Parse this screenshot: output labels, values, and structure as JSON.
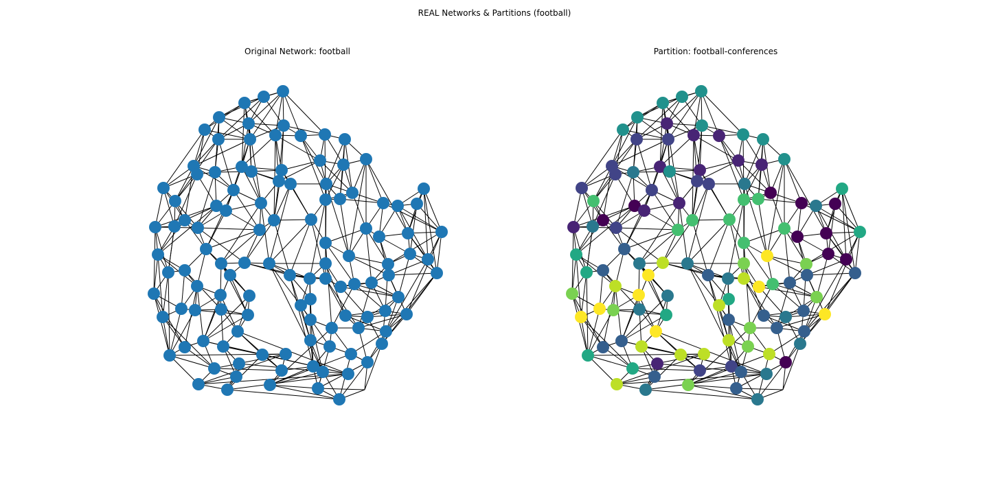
{
  "figure": {
    "suptitle": "REAL Networks & Partitions (football)",
    "left_title": "Original Network: football",
    "right_title": "Partition: football-conferences"
  },
  "colors": {
    "default_node": "#1f77b4",
    "edge": "#000000",
    "palette": [
      "#440154",
      "#482475",
      "#414487",
      "#355f8d",
      "#2a788e",
      "#21918c",
      "#22a884",
      "#44bf70",
      "#7ad151",
      "#bddf26",
      "#fde725"
    ]
  },
  "chart_data": {
    "type": "network",
    "nodes": [
      {
        "id": 0,
        "community": 5
      },
      {
        "id": 1,
        "community": 5
      },
      {
        "id": 2,
        "community": 5
      },
      {
        "id": 3,
        "community": 5
      },
      {
        "id": 4,
        "community": 5
      },
      {
        "id": 5,
        "community": 1
      },
      {
        "id": 6,
        "community": 5
      },
      {
        "id": 7,
        "community": 1
      },
      {
        "id": 8,
        "community": 1
      },
      {
        "id": 9,
        "community": 5
      },
      {
        "id": 10,
        "community": 5
      },
      {
        "id": 11,
        "community": 2
      },
      {
        "id": 12,
        "community": 2
      },
      {
        "id": 13,
        "community": 5
      },
      {
        "id": 14,
        "community": 1
      },
      {
        "id": 15,
        "community": 1
      },
      {
        "id": 16,
        "community": 2
      },
      {
        "id": 17,
        "community": 2
      },
      {
        "id": 18,
        "community": 4
      },
      {
        "id": 19,
        "community": 1
      },
      {
        "id": 20,
        "community": 5
      },
      {
        "id": 21,
        "community": 1
      },
      {
        "id": 22,
        "community": 2
      },
      {
        "id": 23,
        "community": 2
      },
      {
        "id": 24,
        "community": 4
      },
      {
        "id": 25,
        "community": 2
      },
      {
        "id": 26,
        "community": 2
      },
      {
        "id": 27,
        "community": 7
      },
      {
        "id": 28,
        "community": 0
      },
      {
        "id": 29,
        "community": 1
      },
      {
        "id": 30,
        "community": 1
      },
      {
        "id": 31,
        "community": 7
      },
      {
        "id": 32,
        "community": 7
      },
      {
        "id": 33,
        "community": 0
      },
      {
        "id": 34,
        "community": 6
      },
      {
        "id": 35,
        "community": 0
      },
      {
        "id": 36,
        "community": 4
      },
      {
        "id": 37,
        "community": 0
      },
      {
        "id": 38,
        "community": 0
      },
      {
        "id": 39,
        "community": 4
      },
      {
        "id": 40,
        "community": 1
      },
      {
        "id": 41,
        "community": 2
      },
      {
        "id": 42,
        "community": 7
      },
      {
        "id": 43,
        "community": 7
      },
      {
        "id": 44,
        "community": 7
      },
      {
        "id": 45,
        "community": 7
      },
      {
        "id": 46,
        "community": 0
      },
      {
        "id": 47,
        "community": 6
      },
      {
        "id": 48,
        "community": 0
      },
      {
        "id": 49,
        "community": 3
      },
      {
        "id": 50,
        "community": 6
      },
      {
        "id": 51,
        "community": 7
      },
      {
        "id": 52,
        "community": 9
      },
      {
        "id": 53,
        "community": 4
      },
      {
        "id": 54,
        "community": 10
      },
      {
        "id": 55,
        "community": 0
      },
      {
        "id": 56,
        "community": 8
      },
      {
        "id": 57,
        "community": 0
      },
      {
        "id": 58,
        "community": 6
      },
      {
        "id": 59,
        "community": 3
      },
      {
        "id": 60,
        "community": 4
      },
      {
        "id": 61,
        "community": 10
      },
      {
        "id": 62,
        "community": 3
      },
      {
        "id": 63,
        "community": 8
      },
      {
        "id": 64,
        "community": 4
      },
      {
        "id": 65,
        "community": 9
      },
      {
        "id": 66,
        "community": 3
      },
      {
        "id": 67,
        "community": 9
      },
      {
        "id": 68,
        "community": 10
      },
      {
        "id": 69,
        "community": 7
      },
      {
        "id": 70,
        "community": 3
      },
      {
        "id": 71,
        "community": 3
      },
      {
        "id": 72,
        "community": 8
      },
      {
        "id": 73,
        "community": 4
      },
      {
        "id": 74,
        "community": 10
      },
      {
        "id": 75,
        "community": 6
      },
      {
        "id": 76,
        "community": 9
      },
      {
        "id": 77,
        "community": 8
      },
      {
        "id": 78,
        "community": 10
      },
      {
        "id": 79,
        "community": 8
      },
      {
        "id": 80,
        "community": 4
      },
      {
        "id": 81,
        "community": 6
      },
      {
        "id": 82,
        "community": 10
      },
      {
        "id": 83,
        "community": 3
      },
      {
        "id": 84,
        "community": 3
      },
      {
        "id": 85,
        "community": 8
      },
      {
        "id": 86,
        "community": 4
      },
      {
        "id": 87,
        "community": 3
      },
      {
        "id": 88,
        "community": 3
      },
      {
        "id": 89,
        "community": 10
      },
      {
        "id": 90,
        "community": 10
      },
      {
        "id": 91,
        "community": 9
      },
      {
        "id": 92,
        "community": 3
      },
      {
        "id": 93,
        "community": 3
      },
      {
        "id": 94,
        "community": 9
      },
      {
        "id": 95,
        "community": 8
      },
      {
        "id": 96,
        "community": 3
      },
      {
        "id": 97,
        "community": 9
      },
      {
        "id": 98,
        "community": 9
      },
      {
        "id": 99,
        "community": 4
      },
      {
        "id": 100,
        "community": 9
      },
      {
        "id": 101,
        "community": 6
      },
      {
        "id": 102,
        "community": 1
      },
      {
        "id": 103,
        "community": 0
      },
      {
        "id": 104,
        "community": 6
      },
      {
        "id": 105,
        "community": 2
      },
      {
        "id": 106,
        "community": 2
      },
      {
        "id": 107,
        "community": 3
      },
      {
        "id": 108,
        "community": 3
      },
      {
        "id": 109,
        "community": 4
      },
      {
        "id": 110,
        "community": 9
      },
      {
        "id": 111,
        "community": 8
      },
      {
        "id": 112,
        "community": 3
      },
      {
        "id": 113,
        "community": 4
      },
      {
        "id": 114,
        "community": 4
      }
    ]
  }
}
